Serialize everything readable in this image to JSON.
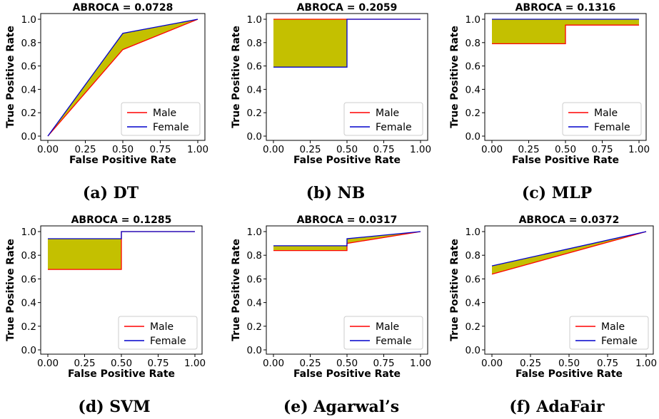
{
  "chart_data": [
    {
      "type": "line",
      "title": "ABROCA = 0.0728",
      "caption": "(a) DT",
      "xlabel": "False Positive Rate",
      "ylabel": "True Positive Rate",
      "xlim": [
        0,
        1
      ],
      "ylim": [
        0,
        1
      ],
      "xticks": [
        "0.00",
        "0.25",
        "0.50",
        "0.75",
        "1.00"
      ],
      "yticks": [
        "0.0",
        "0.2",
        "0.4",
        "0.6",
        "0.8",
        "1.0"
      ],
      "legend_position": "lower-right",
      "fill_between_series": true,
      "series": [
        {
          "name": "Male",
          "color": "#ff0000",
          "x": [
            0,
            0.5,
            1
          ],
          "y": [
            0,
            0.74,
            1
          ]
        },
        {
          "name": "Female",
          "color": "#0000cc",
          "x": [
            0,
            0.5,
            1
          ],
          "y": [
            0,
            0.88,
            1
          ]
        }
      ]
    },
    {
      "type": "line",
      "title": "ABROCA = 0.2059",
      "caption": "(b) NB",
      "xlabel": "False Positive Rate",
      "ylabel": "True Positive Rate",
      "xlim": [
        0,
        1
      ],
      "ylim": [
        0,
        1
      ],
      "xticks": [
        "0.00",
        "0.25",
        "0.50",
        "0.75",
        "1.00"
      ],
      "yticks": [
        "0.0",
        "0.2",
        "0.4",
        "0.6",
        "0.8",
        "1.0"
      ],
      "legend_position": "lower-right",
      "fill_between_series": true,
      "series": [
        {
          "name": "Male",
          "color": "#ff0000",
          "x": [
            0,
            0.5,
            0.5,
            1
          ],
          "y": [
            1.0,
            1.0,
            1.0,
            1.0
          ]
        },
        {
          "name": "Female",
          "color": "#0000cc",
          "x": [
            0,
            0.5,
            0.5,
            1
          ],
          "y": [
            0.59,
            0.59,
            1.0,
            1.0
          ]
        }
      ]
    },
    {
      "type": "line",
      "title": "ABROCA = 0.1316",
      "caption": "(c) MLP",
      "xlabel": "False Positive Rate",
      "ylabel": "True Positive Rate",
      "xlim": [
        0,
        1
      ],
      "ylim": [
        0,
        1
      ],
      "xticks": [
        "0.00",
        "0.25",
        "0.50",
        "0.75",
        "1.00"
      ],
      "yticks": [
        "0.0",
        "0.2",
        "0.4",
        "0.6",
        "0.8",
        "1.0"
      ],
      "legend_position": "lower-right",
      "fill_between_series": true,
      "series": [
        {
          "name": "Male",
          "color": "#ff0000",
          "x": [
            0,
            0.5,
            0.5,
            1
          ],
          "y": [
            0.79,
            0.79,
            0.95,
            0.95
          ]
        },
        {
          "name": "Female",
          "color": "#0000cc",
          "x": [
            0,
            0.5,
            0.5,
            1
          ],
          "y": [
            1.0,
            1.0,
            1.0,
            1.0
          ]
        }
      ]
    },
    {
      "type": "line",
      "title": "ABROCA = 0.1285",
      "caption": "(d) SVM",
      "xlabel": "False Positive Rate",
      "ylabel": "True Positive Rate",
      "xlim": [
        0,
        1
      ],
      "ylim": [
        0,
        1
      ],
      "xticks": [
        "0.00",
        "0.25",
        "0.50",
        "0.75",
        "1.00"
      ],
      "yticks": [
        "0.0",
        "0.2",
        "0.4",
        "0.6",
        "0.8",
        "1.0"
      ],
      "legend_position": "lower-right",
      "fill_between_series": true,
      "series": [
        {
          "name": "Male",
          "color": "#ff0000",
          "x": [
            0,
            0.5,
            0.5,
            1
          ],
          "y": [
            0.68,
            0.68,
            1.0,
            1.0
          ]
        },
        {
          "name": "Female",
          "color": "#0000cc",
          "x": [
            0,
            0.5,
            0.5,
            1
          ],
          "y": [
            0.94,
            0.94,
            1.0,
            1.0
          ]
        }
      ]
    },
    {
      "type": "line",
      "title": "ABROCA = 0.0317",
      "caption": "(e) Agarwal’s",
      "xlabel": "False Positive Rate",
      "ylabel": "True Positive Rate",
      "xlim": [
        0,
        1
      ],
      "ylim": [
        0,
        1
      ],
      "xticks": [
        "0.00",
        "0.25",
        "0.50",
        "0.75",
        "1.00"
      ],
      "yticks": [
        "0.0",
        "0.2",
        "0.4",
        "0.6",
        "0.8",
        "1.0"
      ],
      "legend_position": "lower-right",
      "fill_between_series": true,
      "series": [
        {
          "name": "Male",
          "color": "#ff0000",
          "x": [
            0,
            0.5,
            0.5,
            1
          ],
          "y": [
            0.84,
            0.84,
            0.9,
            1.0
          ]
        },
        {
          "name": "Female",
          "color": "#0000cc",
          "x": [
            0,
            0.5,
            0.5,
            1
          ],
          "y": [
            0.88,
            0.88,
            0.94,
            1.0
          ]
        }
      ]
    },
    {
      "type": "line",
      "title": "ABROCA = 0.0372",
      "caption": "(f) AdaFair",
      "xlabel": "False Positive Rate",
      "ylabel": "True Positive Rate",
      "xlim": [
        0,
        1
      ],
      "ylim": [
        0,
        1
      ],
      "xticks": [
        "0.00",
        "0.25",
        "0.50",
        "0.75",
        "1.00"
      ],
      "yticks": [
        "0.0",
        "0.2",
        "0.4",
        "0.6",
        "0.8",
        "1.0"
      ],
      "legend_position": "lower-right",
      "fill_between_series": true,
      "series": [
        {
          "name": "Male",
          "color": "#ff0000",
          "x": [
            0,
            1
          ],
          "y": [
            0.64,
            1.0
          ]
        },
        {
          "name": "Female",
          "color": "#0000cc",
          "x": [
            0,
            1
          ],
          "y": [
            0.71,
            1.0
          ]
        }
      ]
    }
  ],
  "colors": {
    "fill": "#c4c000",
    "axis": "#000000"
  }
}
